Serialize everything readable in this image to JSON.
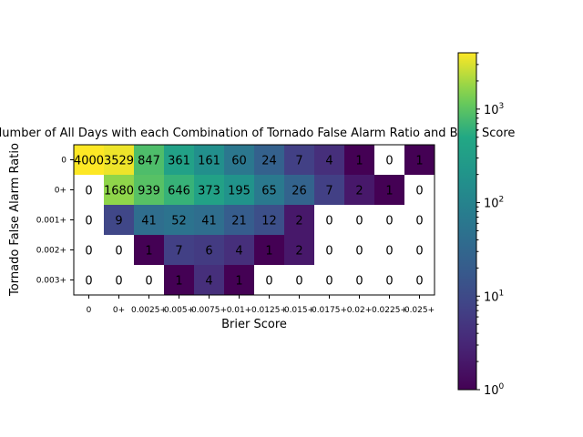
{
  "chart_data": {
    "type": "heatmap",
    "title": "Number of All Days with each Combination of Tornado False Alarm Ratio and Brier Score",
    "xlabel": "Brier Score",
    "ylabel": "Tornado False Alarm Ratio",
    "x_categories": [
      "0",
      "0+",
      "0.0025+",
      "0.005+",
      "0.0075+",
      "0.01+",
      "0.0125+",
      "0.015+",
      "0.0175+",
      "0.02+",
      "0.0225+",
      "0.025+"
    ],
    "y_categories": [
      "0",
      "0+",
      "0.001+",
      "0.002+",
      "0.003+"
    ],
    "values": [
      [
        4000,
        3529,
        847,
        361,
        161,
        60,
        24,
        7,
        4,
        1,
        0,
        1
      ],
      [
        0,
        1680,
        939,
        646,
        373,
        195,
        65,
        26,
        7,
        2,
        1,
        0
      ],
      [
        0,
        9,
        41,
        52,
        41,
        21,
        12,
        2,
        0,
        0,
        0,
        0
      ],
      [
        0,
        0,
        1,
        7,
        6,
        4,
        1,
        2,
        0,
        0,
        0,
        0
      ],
      [
        0,
        0,
        0,
        1,
        4,
        1,
        0,
        0,
        0,
        0,
        0,
        0
      ]
    ],
    "colorbar": {
      "scale": "log",
      "colormap": "viridis",
      "vmin": 1,
      "vmax": 4000,
      "tick_labels": [
        "10^0",
        "10^1",
        "10^2",
        "10^3"
      ],
      "tick_values": [
        1,
        10,
        100,
        1000
      ]
    },
    "zero_cells": "white",
    "grid": false
  }
}
